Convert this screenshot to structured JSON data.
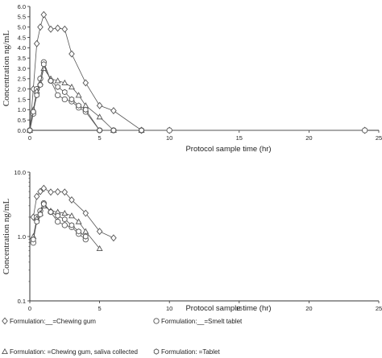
{
  "chart_data": [
    {
      "type": "line",
      "x_scale": "linear",
      "y_scale": "linear",
      "xlabel": "Protocol sample time   (hr)",
      "ylabel": "Concentration ng/mL",
      "xlim": [
        0,
        25
      ],
      "ylim": [
        0,
        6
      ],
      "x_ticks": [
        0,
        5,
        10,
        15,
        20,
        25
      ],
      "y_ticks": [
        0.0,
        0.5,
        1.0,
        1.5,
        2.0,
        2.5,
        3.0,
        3.5,
        4.0,
        4.5,
        5.0,
        5.5,
        6.0
      ],
      "x_tick_labels": [
        "0",
        "5",
        "10",
        "15",
        "20",
        "25"
      ],
      "y_tick_labels": [
        "0.0",
        "0.5",
        "1.0",
        "1.5",
        "2.0",
        "2.5",
        "3.0",
        "3.5",
        "4.0",
        "4.5",
        "5.0",
        "5.5",
        "6.0"
      ],
      "series": [
        {
          "name": "Formulation:__=Chewing gum",
          "marker": "diamond",
          "x": [
            0,
            0.25,
            0.5,
            0.75,
            1,
            1.5,
            2,
            2.5,
            3,
            4,
            5,
            6,
            8,
            10,
            24
          ],
          "y": [
            0,
            2.0,
            4.2,
            5.0,
            5.6,
            4.9,
            4.95,
            4.9,
            3.7,
            2.3,
            1.2,
            0.95,
            0,
            0,
            0
          ]
        },
        {
          "name": "Formulation:__=Smelt tablet",
          "marker": "circle",
          "x": [
            0,
            0.25,
            0.5,
            0.75,
            1,
            1.5,
            2,
            2.5,
            3,
            3.5,
            4,
            5,
            6,
            8,
            10,
            24
          ],
          "y": [
            0,
            0.8,
            2.0,
            2.5,
            3.3,
            2.4,
            1.7,
            1.5,
            1.4,
            1.1,
            0.9,
            0,
            0,
            0,
            0,
            0
          ]
        },
        {
          "name": "Formulation:   =Chewing gum, saliva collected",
          "marker": "triangle",
          "x": [
            0,
            0.25,
            0.5,
            0.75,
            1,
            1.5,
            2,
            2.5,
            3,
            3.5,
            4,
            5,
            6,
            8
          ],
          "y": [
            0,
            1.0,
            1.9,
            2.3,
            3.0,
            2.5,
            2.4,
            2.3,
            2.1,
            1.7,
            1.2,
            0.65,
            0,
            0
          ]
        },
        {
          "name": "Formulation:   =Tablet",
          "marker": "hexagon",
          "x": [
            0,
            0.25,
            0.5,
            0.75,
            1,
            1.5,
            2,
            2.5,
            3,
            3.5,
            4,
            5,
            6,
            8
          ],
          "y": [
            0,
            0.9,
            1.7,
            2.2,
            3.2,
            2.4,
            2.1,
            1.85,
            1.5,
            1.2,
            1.0,
            0,
            0,
            0
          ]
        }
      ]
    },
    {
      "type": "line",
      "x_scale": "linear",
      "y_scale": "log",
      "xlabel": "Protocol sample time   (hr)",
      "ylabel": "Concentration ng/mL",
      "xlim": [
        0,
        25
      ],
      "ylim": [
        0.1,
        10.0
      ],
      "x_ticks": [
        0,
        5,
        10,
        15,
        20,
        25
      ],
      "y_ticks": [
        0.1,
        1.0,
        10.0
      ],
      "x_tick_labels": [
        "0",
        "5",
        "10",
        "15",
        "20",
        "25"
      ],
      "y_tick_labels": [
        "0.1",
        "1.0",
        "10.0"
      ],
      "series": [
        {
          "name": "Formulation:__=Chewing gum",
          "marker": "diamond",
          "x": [
            0.25,
            0.5,
            0.75,
            1,
            1.5,
            2,
            2.5,
            3,
            4,
            5,
            6
          ],
          "y": [
            2.0,
            4.2,
            5.0,
            5.6,
            4.9,
            4.95,
            4.9,
            3.7,
            2.3,
            1.2,
            0.95
          ]
        },
        {
          "name": "Formulation:__=Smelt tablet",
          "marker": "circle",
          "x": [
            0.25,
            0.5,
            0.75,
            1,
            1.5,
            2,
            2.5,
            3,
            3.5,
            4
          ],
          "y": [
            0.8,
            2.0,
            2.5,
            3.3,
            2.4,
            1.7,
            1.5,
            1.4,
            1.1,
            0.9
          ]
        },
        {
          "name": "Formulation:   =Chewing gum, saliva collected",
          "marker": "triangle",
          "x": [
            0.25,
            0.5,
            0.75,
            1,
            1.5,
            2,
            2.5,
            3,
            3.5,
            4,
            5
          ],
          "y": [
            1.0,
            1.9,
            2.3,
            3.0,
            2.5,
            2.4,
            2.3,
            2.1,
            1.7,
            1.2,
            0.65
          ]
        },
        {
          "name": "Formulation:   =Tablet",
          "marker": "hexagon",
          "x": [
            0.25,
            0.5,
            0.75,
            1,
            1.5,
            2,
            2.5,
            3,
            3.5,
            4
          ],
          "y": [
            0.9,
            1.7,
            2.2,
            3.2,
            2.4,
            2.1,
            1.85,
            1.5,
            1.2,
            1.0
          ]
        }
      ]
    }
  ],
  "legend": {
    "placement": "bottom",
    "items": [
      {
        "marker": "diamond",
        "label": "Formulation:__=Chewing gum"
      },
      {
        "marker": "circle",
        "label": "Formulation:__=Smelt tablet"
      },
      {
        "marker": "triangle",
        "label": "Formulation:   =Chewing gum, saliva collected"
      },
      {
        "marker": "hexagon",
        "label": "Formulation:   =Tablet"
      }
    ]
  },
  "colors": {
    "series": "#555555",
    "axis": "#333333",
    "background": "#ffffff"
  }
}
